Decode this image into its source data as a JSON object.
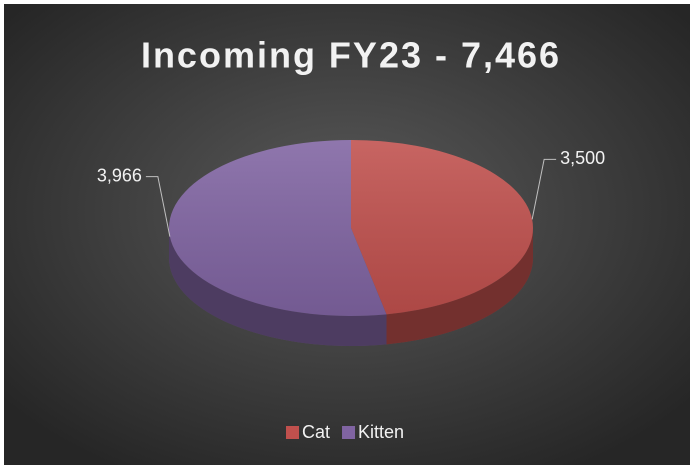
{
  "chart_data": {
    "type": "pie",
    "title": "Incoming FY23 - 7,466",
    "categories": [
      "Cat",
      "Kitten"
    ],
    "values": [
      3500,
      3966
    ],
    "value_labels": [
      "3,500",
      "3,966"
    ],
    "colors": [
      "#c0504d",
      "#8064a2"
    ],
    "legend": "bottom"
  }
}
